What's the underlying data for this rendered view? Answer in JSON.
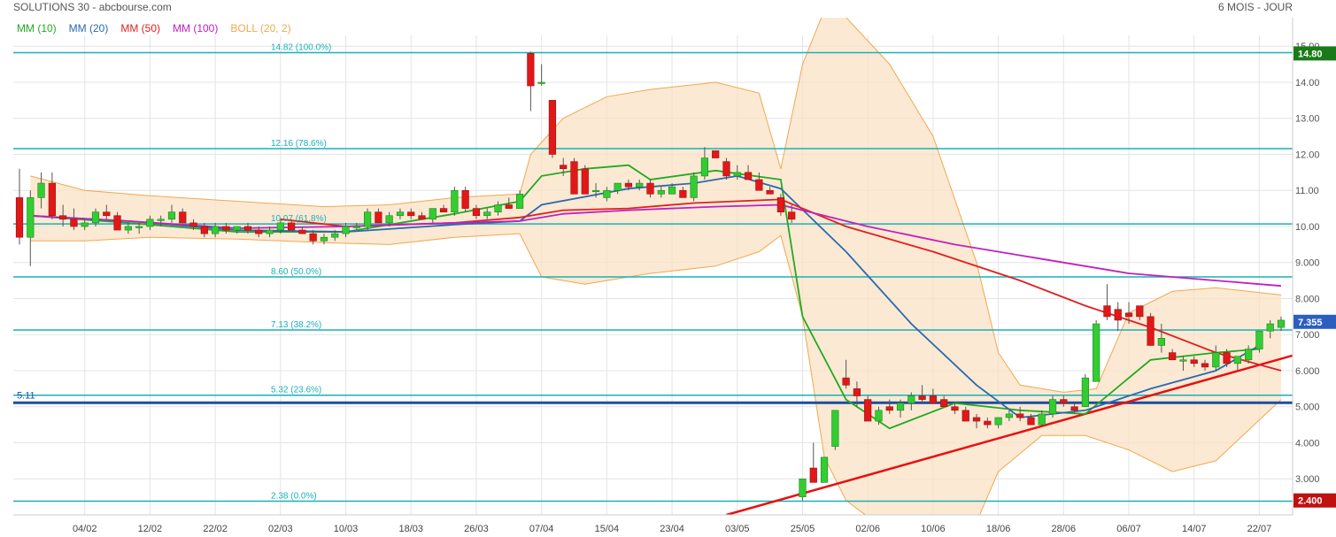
{
  "header": {
    "title": "SOLUTIONS 30 - abcbourse.com",
    "period": "6 MOIS - JOUR"
  },
  "legend": [
    {
      "label": "MM (10)",
      "color": "#22aa22"
    },
    {
      "label": "MM (20)",
      "color": "#2a6ab0"
    },
    {
      "label": "MM (50)",
      "color": "#e02020"
    },
    {
      "label": "MM (100)",
      "color": "#c020c0"
    },
    {
      "label": "BOLL (20, 2)",
      "color": "#f0a850"
    }
  ],
  "chart_data": {
    "type": "candlestick",
    "y_axis": {
      "range": [
        2.0,
        15.3
      ],
      "ticks": [
        "15.00",
        "14.00",
        "13.00",
        "12.00",
        "11.00",
        "10.00",
        "9.000",
        "8.000",
        "7.000",
        "6.000",
        "5.000",
        "4.000",
        "3.000"
      ],
      "tick_values": [
        15,
        14,
        13,
        12,
        11,
        10,
        9,
        8,
        7,
        6,
        5,
        4,
        3
      ],
      "position": "right"
    },
    "x_axis": {
      "labels": [
        "04/02",
        "12/02",
        "22/02",
        "02/03",
        "10/03",
        "18/03",
        "26/03",
        "07/04",
        "15/04",
        "23/04",
        "03/05",
        "25/05",
        "02/06",
        "10/06",
        "18/06",
        "28/06",
        "06/07",
        "14/07",
        "22/07"
      ],
      "label_index": [
        6,
        12,
        18,
        24,
        30,
        36,
        42,
        48,
        54,
        60,
        66,
        72,
        78,
        84,
        90,
        96,
        102,
        108,
        114
      ]
    },
    "grid": true,
    "candles": [
      [
        10.8,
        11.6,
        9.5,
        9.7
      ],
      [
        9.7,
        11.0,
        8.9,
        10.8
      ],
      [
        10.8,
        11.5,
        10.5,
        11.2
      ],
      [
        11.2,
        11.5,
        10.2,
        10.3
      ],
      [
        10.3,
        10.6,
        10.0,
        10.2
      ],
      [
        10.2,
        10.5,
        9.9,
        10.0
      ],
      [
        10.0,
        10.2,
        9.9,
        10.1
      ],
      [
        10.1,
        10.5,
        10.0,
        10.4
      ],
      [
        10.4,
        10.6,
        10.2,
        10.3
      ],
      [
        10.3,
        10.4,
        9.9,
        9.9
      ],
      [
        9.9,
        10.1,
        9.8,
        10.0
      ],
      [
        10.0,
        10.1,
        9.8,
        10.0
      ],
      [
        10.0,
        10.3,
        9.9,
        10.2
      ],
      [
        10.2,
        10.3,
        10.0,
        10.2
      ],
      [
        10.2,
        10.6,
        10.1,
        10.4
      ],
      [
        10.4,
        10.5,
        10.1,
        10.1
      ],
      [
        10.1,
        10.2,
        9.9,
        10.0
      ],
      [
        10.0,
        10.1,
        9.7,
        9.8
      ],
      [
        9.8,
        10.1,
        9.7,
        10.0
      ],
      [
        10.0,
        10.1,
        9.8,
        9.9
      ],
      [
        9.9,
        10.0,
        9.8,
        10.0
      ],
      [
        10.0,
        10.1,
        9.8,
        9.9
      ],
      [
        9.9,
        10.0,
        9.7,
        9.8
      ],
      [
        9.8,
        10.0,
        9.7,
        9.9
      ],
      [
        9.9,
        10.2,
        9.8,
        10.1
      ],
      [
        10.1,
        10.2,
        9.9,
        9.9
      ],
      [
        9.9,
        10.0,
        9.8,
        9.8
      ],
      [
        9.8,
        9.9,
        9.5,
        9.6
      ],
      [
        9.6,
        9.8,
        9.5,
        9.7
      ],
      [
        9.7,
        9.9,
        9.6,
        9.8
      ],
      [
        9.8,
        10.1,
        9.7,
        10.0
      ],
      [
        10.0,
        10.1,
        9.9,
        10.0
      ],
      [
        10.0,
        10.5,
        9.9,
        10.4
      ],
      [
        10.4,
        10.5,
        10.1,
        10.1
      ],
      [
        10.1,
        10.4,
        10.0,
        10.3
      ],
      [
        10.3,
        10.5,
        10.2,
        10.4
      ],
      [
        10.4,
        10.5,
        10.2,
        10.3
      ],
      [
        10.3,
        10.4,
        10.2,
        10.2
      ],
      [
        10.2,
        10.5,
        10.1,
        10.5
      ],
      [
        10.5,
        10.6,
        10.4,
        10.4
      ],
      [
        10.4,
        11.1,
        10.3,
        11.0
      ],
      [
        11.0,
        11.1,
        10.4,
        10.5
      ],
      [
        10.5,
        10.6,
        10.2,
        10.3
      ],
      [
        10.3,
        10.5,
        10.2,
        10.4
      ],
      [
        10.4,
        10.7,
        10.3,
        10.6
      ],
      [
        10.6,
        10.8,
        10.5,
        10.5
      ],
      [
        10.5,
        11.0,
        10.5,
        10.9
      ],
      [
        14.8,
        14.85,
        13.2,
        13.9
      ],
      [
        14.0,
        14.5,
        13.9,
        14.0
      ],
      [
        13.5,
        13.5,
        11.9,
        12.0
      ],
      [
        11.7,
        11.9,
        11.4,
        11.6
      ],
      [
        11.8,
        11.9,
        10.9,
        10.9
      ],
      [
        11.6,
        11.7,
        10.9,
        10.9
      ],
      [
        11.0,
        11.2,
        10.8,
        11.0
      ],
      [
        10.8,
        11.1,
        10.7,
        11.0
      ],
      [
        11.0,
        11.2,
        10.9,
        11.2
      ],
      [
        11.2,
        11.3,
        11.0,
        11.1
      ],
      [
        11.1,
        11.3,
        11.0,
        11.2
      ],
      [
        11.2,
        11.3,
        10.8,
        10.9
      ],
      [
        10.9,
        11.1,
        10.8,
        11.0
      ],
      [
        10.9,
        11.2,
        10.9,
        11.1
      ],
      [
        11.0,
        11.1,
        10.8,
        10.8
      ],
      [
        10.8,
        11.5,
        10.7,
        11.4
      ],
      [
        11.4,
        12.2,
        11.3,
        11.9
      ],
      [
        12.1,
        12.1,
        11.9,
        11.9
      ],
      [
        11.8,
        11.9,
        11.3,
        11.4
      ],
      [
        11.4,
        11.7,
        11.3,
        11.5
      ],
      [
        11.5,
        11.7,
        11.3,
        11.3
      ],
      [
        11.3,
        11.5,
        11.0,
        11.0
      ],
      [
        11.0,
        11.1,
        10.9,
        10.9
      ],
      [
        10.8,
        10.9,
        10.3,
        10.4
      ],
      [
        10.4,
        10.6,
        10.1,
        10.2
      ],
      [
        2.5,
        3.0,
        2.4,
        3.0
      ],
      [
        3.3,
        4.0,
        2.9,
        2.9
      ],
      [
        2.9,
        3.6,
        2.9,
        3.6
      ],
      [
        3.9,
        4.9,
        3.8,
        4.9
      ],
      [
        5.8,
        6.3,
        5.5,
        5.6
      ],
      [
        5.5,
        5.7,
        5.0,
        5.3
      ],
      [
        5.2,
        5.3,
        4.6,
        4.6
      ],
      [
        4.6,
        5.0,
        4.5,
        4.9
      ],
      [
        5.0,
        5.2,
        4.8,
        4.9
      ],
      [
        4.9,
        5.2,
        4.7,
        5.1
      ],
      [
        5.1,
        5.4,
        4.9,
        5.3
      ],
      [
        5.3,
        5.6,
        5.1,
        5.2
      ],
      [
        5.3,
        5.5,
        5.1,
        5.1
      ],
      [
        5.2,
        5.3,
        5.0,
        5.0
      ],
      [
        5.0,
        5.1,
        4.8,
        4.9
      ],
      [
        4.9,
        5.0,
        4.6,
        4.6
      ],
      [
        4.7,
        4.8,
        4.4,
        4.6
      ],
      [
        4.6,
        4.7,
        4.4,
        4.5
      ],
      [
        4.5,
        4.7,
        4.4,
        4.7
      ],
      [
        4.7,
        4.9,
        4.6,
        4.8
      ],
      [
        4.8,
        5.0,
        4.6,
        4.7
      ],
      [
        4.7,
        4.8,
        4.5,
        4.5
      ],
      [
        4.5,
        4.9,
        4.5,
        4.8
      ],
      [
        4.8,
        5.3,
        4.7,
        5.2
      ],
      [
        5.2,
        5.3,
        5.0,
        5.1
      ],
      [
        5.0,
        5.1,
        4.8,
        4.9
      ],
      [
        5.0,
        5.9,
        5.0,
        5.8
      ],
      [
        5.7,
        7.4,
        5.7,
        7.3
      ],
      [
        7.8,
        8.4,
        7.4,
        7.5
      ],
      [
        7.7,
        7.9,
        7.1,
        7.4
      ],
      [
        7.6,
        7.9,
        7.3,
        7.5
      ],
      [
        7.8,
        7.8,
        7.4,
        7.5
      ],
      [
        7.5,
        7.6,
        6.7,
        6.7
      ],
      [
        6.7,
        7.3,
        6.5,
        6.9
      ],
      [
        6.5,
        6.6,
        6.3,
        6.3
      ],
      [
        6.3,
        6.4,
        6.0,
        6.3
      ],
      [
        6.3,
        6.4,
        6.1,
        6.2
      ],
      [
        6.2,
        6.3,
        6.0,
        6.1
      ],
      [
        6.1,
        6.7,
        6.0,
        6.5
      ],
      [
        6.5,
        6.6,
        6.1,
        6.2
      ],
      [
        6.2,
        6.4,
        6.0,
        6.4
      ],
      [
        6.3,
        6.7,
        6.2,
        6.6
      ],
      [
        6.6,
        7.1,
        6.5,
        7.1
      ],
      [
        7.1,
        7.4,
        6.9,
        7.3
      ],
      [
        7.2,
        7.5,
        7.1,
        7.4
      ]
    ],
    "series": [
      {
        "name": "MM (10)",
        "color": "#22aa22",
        "points": [
          [
            1,
            10.3
          ],
          [
            10,
            10.1
          ],
          [
            20,
            9.85
          ],
          [
            30,
            9.85
          ],
          [
            40,
            10.35
          ],
          [
            46,
            10.7
          ],
          [
            48,
            11.4
          ],
          [
            52,
            11.6
          ],
          [
            56,
            11.7
          ],
          [
            58,
            11.3
          ],
          [
            64,
            11.55
          ],
          [
            70,
            11.3
          ],
          [
            72,
            7.5
          ],
          [
            76,
            5.2
          ],
          [
            80,
            4.4
          ],
          [
            86,
            5.1
          ],
          [
            92,
            4.9
          ],
          [
            98,
            4.8
          ],
          [
            104,
            6.3
          ],
          [
            110,
            6.5
          ],
          [
            114,
            6.6
          ]
        ]
      },
      {
        "name": "MM (20)",
        "color": "#2a6ab0",
        "points": [
          [
            1,
            10.3
          ],
          [
            10,
            10.15
          ],
          [
            20,
            9.9
          ],
          [
            30,
            9.85
          ],
          [
            40,
            10.05
          ],
          [
            46,
            10.15
          ],
          [
            48,
            10.6
          ],
          [
            56,
            11.05
          ],
          [
            62,
            11.2
          ],
          [
            66,
            11.4
          ],
          [
            70,
            11.05
          ],
          [
            76,
            9.3
          ],
          [
            82,
            7.3
          ],
          [
            88,
            5.6
          ],
          [
            92,
            4.7
          ],
          [
            98,
            4.9
          ],
          [
            104,
            5.5
          ],
          [
            110,
            6.0
          ],
          [
            114,
            6.7
          ]
        ]
      },
      {
        "name": "MM (50)",
        "color": "#e02020",
        "points": [
          [
            24,
            10.2
          ],
          [
            30,
            10.0
          ],
          [
            40,
            10.1
          ],
          [
            46,
            10.25
          ],
          [
            50,
            10.45
          ],
          [
            56,
            10.5
          ],
          [
            62,
            10.65
          ],
          [
            70,
            10.75
          ],
          [
            76,
            10.0
          ],
          [
            84,
            9.3
          ],
          [
            92,
            8.5
          ],
          [
            98,
            7.8
          ],
          [
            104,
            7.2
          ],
          [
            110,
            6.5
          ],
          [
            116,
            6.0
          ]
        ]
      },
      {
        "name": "MM (100)",
        "color": "#c020c0",
        "points": [
          [
            1,
            10.3
          ],
          [
            10,
            10.15
          ],
          [
            20,
            9.95
          ],
          [
            30,
            10.0
          ],
          [
            40,
            10.1
          ],
          [
            46,
            10.15
          ],
          [
            50,
            10.35
          ],
          [
            56,
            10.45
          ],
          [
            64,
            10.55
          ],
          [
            70,
            10.6
          ],
          [
            78,
            10.0
          ],
          [
            86,
            9.5
          ],
          [
            94,
            9.1
          ],
          [
            102,
            8.7
          ],
          [
            110,
            8.5
          ],
          [
            116,
            8.35
          ]
        ]
      }
    ],
    "bollinger": {
      "name": "BOLL (20, 2)",
      "color": "#f0a850",
      "upper": [
        [
          1,
          11.4
        ],
        [
          6,
          11.0
        ],
        [
          12,
          10.85
        ],
        [
          20,
          10.7
        ],
        [
          28,
          10.55
        ],
        [
          34,
          10.6
        ],
        [
          40,
          10.8
        ],
        [
          46,
          10.9
        ],
        [
          47,
          12.0
        ],
        [
          50,
          13.0
        ],
        [
          54,
          13.6
        ],
        [
          58,
          13.8
        ],
        [
          64,
          14.0
        ],
        [
          68,
          13.7
        ],
        [
          70,
          11.6
        ],
        [
          72,
          14.5
        ],
        [
          74,
          16.0
        ],
        [
          76,
          15.8
        ],
        [
          80,
          14.5
        ],
        [
          84,
          12.5
        ],
        [
          88,
          9.0
        ],
        [
          90,
          6.5
        ],
        [
          92,
          5.6
        ],
        [
          96,
          5.4
        ],
        [
          99,
          5.5
        ],
        [
          102,
          7.6
        ],
        [
          106,
          8.2
        ],
        [
          110,
          8.3
        ],
        [
          116,
          8.1
        ]
      ],
      "lower": [
        [
          1,
          9.6
        ],
        [
          6,
          9.6
        ],
        [
          12,
          9.7
        ],
        [
          20,
          9.65
        ],
        [
          28,
          9.55
        ],
        [
          34,
          9.5
        ],
        [
          40,
          9.7
        ],
        [
          46,
          9.8
        ],
        [
          48,
          8.6
        ],
        [
          52,
          8.4
        ],
        [
          58,
          8.7
        ],
        [
          64,
          8.9
        ],
        [
          68,
          9.3
        ],
        [
          70,
          9.75
        ],
        [
          72,
          7.5
        ],
        [
          74,
          3.6
        ],
        [
          76,
          2.4
        ],
        [
          80,
          1.5
        ],
        [
          86,
          1.4
        ],
        [
          88,
          1.8
        ],
        [
          90,
          3.2
        ],
        [
          94,
          4.2
        ],
        [
          98,
          4.2
        ],
        [
          102,
          3.8
        ],
        [
          106,
          3.2
        ],
        [
          110,
          3.5
        ],
        [
          116,
          5.2
        ]
      ]
    },
    "trendline": {
      "color": "#e81010",
      "points": [
        [
          65,
          2.0
        ],
        [
          118,
          6.5
        ]
      ]
    },
    "fib_levels": [
      {
        "value": 14.82,
        "label": "14.82  (100.0%)"
      },
      {
        "value": 12.16,
        "label": "12.16  (78.6%)"
      },
      {
        "value": 10.07,
        "label": "10.07  (61.8%)"
      },
      {
        "value": 8.6,
        "label": "8.60  (50.0%)"
      },
      {
        "value": 7.13,
        "label": "7.13  (38.2%)"
      },
      {
        "value": 5.32,
        "label": "5.32  (23.6%)"
      },
      {
        "value": 2.38,
        "label": "2.38  (0.0%)"
      }
    ],
    "support": {
      "value": 5.11,
      "label": "5.11",
      "color": "#1a4fa0"
    },
    "price_tags": [
      {
        "value": 14.8,
        "label": "14.80",
        "color": "#1a7a1a"
      },
      {
        "value": 7.355,
        "label": "7.355",
        "color": "#2a5fc0"
      },
      {
        "value": 2.4,
        "label": "2.400",
        "color": "#c01010"
      }
    ]
  }
}
